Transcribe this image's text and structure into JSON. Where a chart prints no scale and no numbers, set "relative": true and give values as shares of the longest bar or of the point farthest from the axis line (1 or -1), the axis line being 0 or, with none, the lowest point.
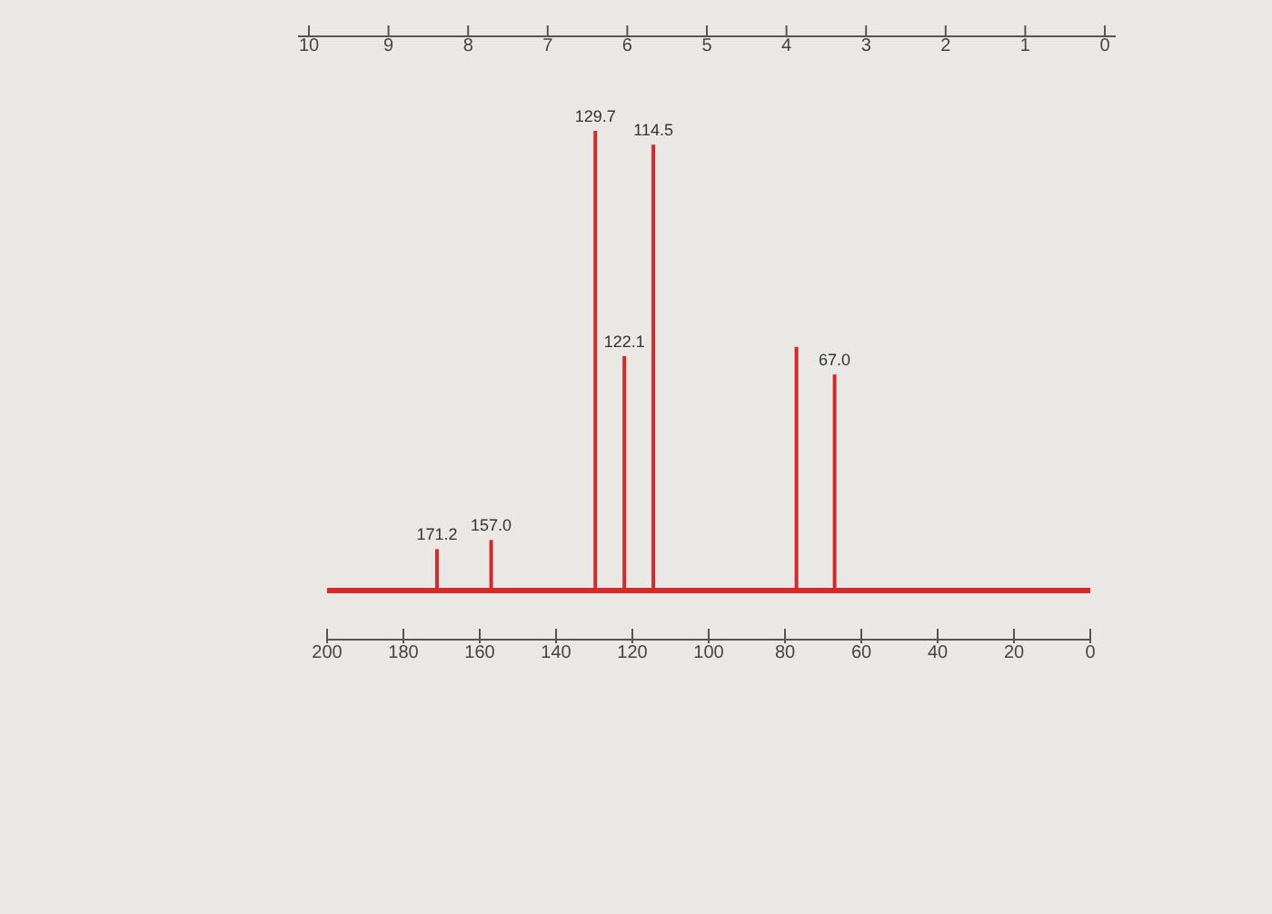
{
  "chart_data": {
    "type": "bar",
    "relative": true,
    "x": [
      171.2,
      157.0,
      129.7,
      122.1,
      114.5,
      77,
      67.0
    ],
    "series": [
      {
        "color": "#d42a2a",
        "values": [
          0.09,
          0.11,
          1,
          0.51,
          0.97,
          0.53,
          0.47
        ]
      }
    ],
    "ref_lines": [
      {
        "axis": "y",
        "value": 0,
        "color": "#d42a2a"
      }
    ],
    "xlim": [
      200,
      0
    ],
    "xticks": [
      200,
      180,
      160,
      140,
      120,
      100,
      80,
      60,
      40,
      20,
      0
    ],
    "x2lim": [
      10,
      0
    ],
    "x2ticks": [
      10,
      9,
      8,
      7,
      6,
      5,
      4,
      3,
      2,
      1,
      0
    ],
    "annotations": [
      {
        "text": "171.2",
        "x": 171.2,
        "y": 0.09
      },
      {
        "text": "157.0",
        "x": 157.0,
        "y": 0.11
      },
      {
        "text": "129.7",
        "x": 129.7,
        "y": 1
      },
      {
        "text": "122.1",
        "x": 122.1,
        "y": 0.51
      },
      {
        "text": "114.5",
        "x": 114.5,
        "y": 0.97
      },
      {
        "text": "67.0",
        "x": 67.0,
        "y": 0.47
      }
    ]
  }
}
